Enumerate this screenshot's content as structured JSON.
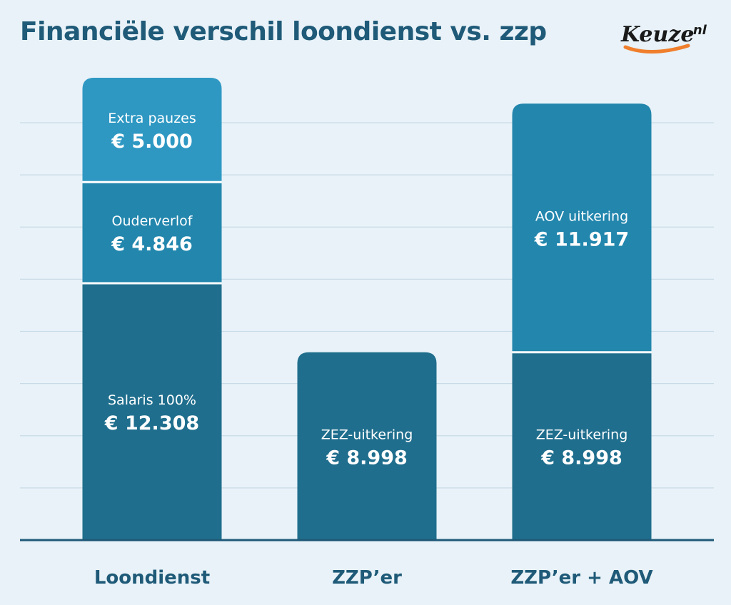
{
  "title": "Financiële verschil loondienst vs. zzp",
  "brand": {
    "name": "Keuze.nl",
    "wordmark": "Keuze",
    "suffix": ".nl",
    "colors": {
      "text": "#1a1a1a",
      "swoosh": "#f07f2d"
    }
  },
  "colors": {
    "background": "#e8f2f8",
    "title": "#1f5a78",
    "axis": "#1f5a78",
    "grid": "#c9dbe6",
    "segment_bottom": "#1f6e8d",
    "segment_middle": "#2286ad",
    "segment_top": "#2e98c3",
    "segment_label": "#ffffff"
  },
  "chart_data": {
    "type": "bar",
    "stacked": true,
    "title": "Financiële verschil loondienst vs. zzp",
    "categories": [
      "Loondienst",
      "ZZP’er",
      "ZZP’er + AOV"
    ],
    "ylim": [
      0,
      24000
    ],
    "grid": true,
    "legend": "none",
    "bars": [
      {
        "category": "Loondienst",
        "segments": [
          {
            "label": "Salaris 100%",
            "value": 12308,
            "value_text": "€ 12.308",
            "tone": "bottom"
          },
          {
            "label": "Ouderverlof",
            "value": 4846,
            "value_text": "€ 4.846",
            "tone": "middle"
          },
          {
            "label": "Extra pauzes",
            "value": 5000,
            "value_text": "€ 5.000",
            "tone": "top"
          }
        ]
      },
      {
        "category": "ZZP’er",
        "segments": [
          {
            "label": "ZEZ-uitkering",
            "value": 8998,
            "value_text": "€ 8.998",
            "tone": "bottom"
          }
        ]
      },
      {
        "category": "ZZP’er + AOV",
        "segments": [
          {
            "label": "ZEZ-uitkering",
            "value": 8998,
            "value_text": "€ 8.998",
            "tone": "bottom"
          },
          {
            "label": "AOV uitkering",
            "value": 11917,
            "value_text": "€ 11.917",
            "tone": "middle"
          }
        ]
      }
    ]
  }
}
